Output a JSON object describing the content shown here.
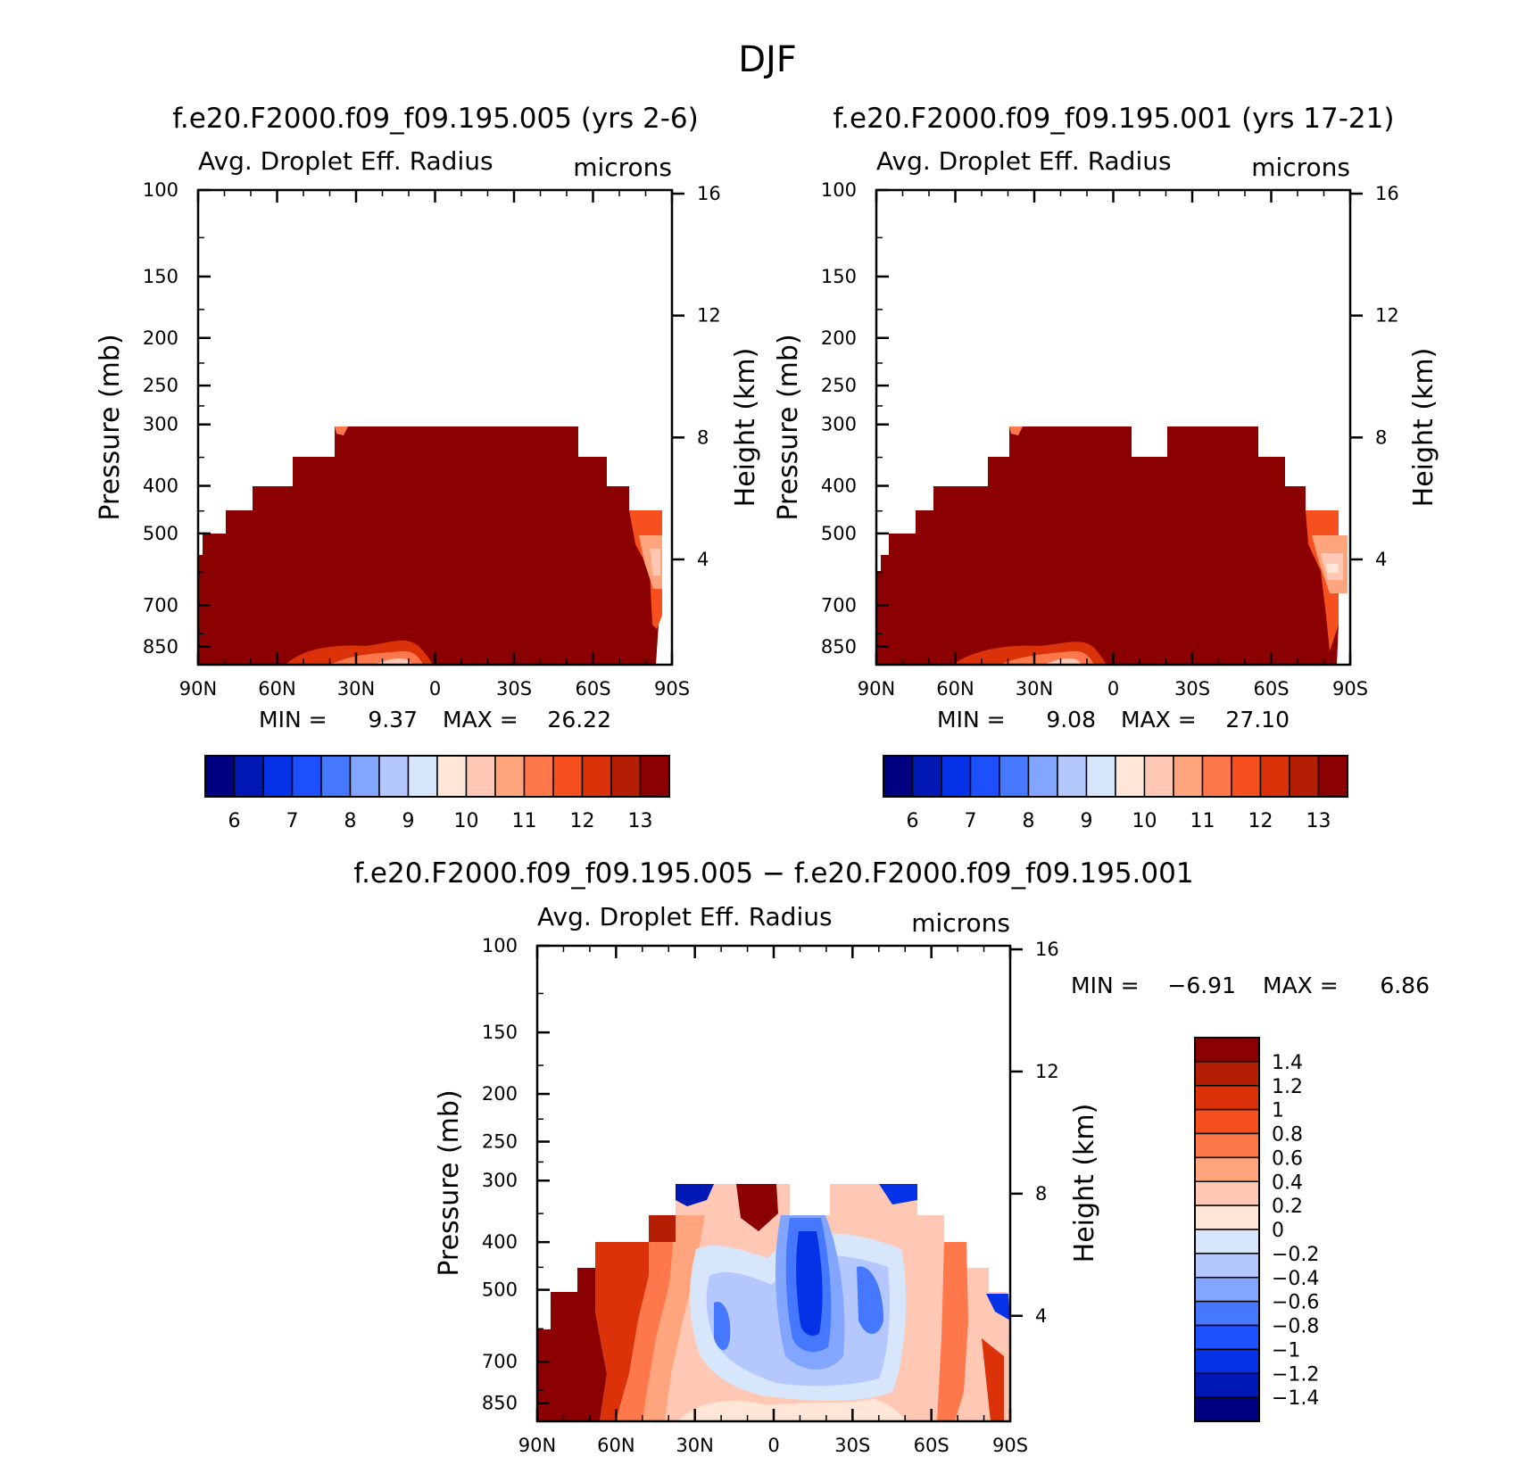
{
  "page_title": "DJF",
  "colors": {
    "dark_red": "#8b0000",
    "seq_scale": [
      "#000080",
      "#0019b4",
      "#0532e6",
      "#1e50ff",
      "#4678ff",
      "#82a5ff",
      "#b4c8ff",
      "#d7e6fa",
      "#ffe6d7",
      "#ffc8b4",
      "#ffa57d",
      "#ff784b",
      "#f5501e",
      "#dc320a",
      "#b41e05",
      "#8b0000"
    ],
    "diff_scale": [
      "#000080",
      "#0019b4",
      "#0532e6",
      "#1e50ff",
      "#4678ff",
      "#82a5ff",
      "#b4c8ff",
      "#d7e6fa",
      "#ffe6d7",
      "#ffc8b4",
      "#ffa57d",
      "#ff784b",
      "#f5501e",
      "#dc320a",
      "#b41e05",
      "#8b0000"
    ]
  },
  "chart_data": [
    {
      "id": "case1",
      "type": "heatmap",
      "title": "f.e20.F2000.f09_f09.195.005 (yrs 2-6)",
      "variable": "Avg. Droplet Eff. Radius",
      "units": "microns",
      "ylabel": "Pressure (mb)",
      "ylabel_right": "Height (km)",
      "x_ticks": [
        "90N",
        "60N",
        "30N",
        "0",
        "30S",
        "60S",
        "90S"
      ],
      "y_ticks": [
        "100",
        "150",
        "200",
        "250",
        "300",
        "400",
        "500",
        "700",
        "850"
      ],
      "y_ticks_right": [
        "16",
        "12",
        "8",
        "4"
      ],
      "ylim": [
        100,
        925
      ],
      "stats": {
        "min_label": "MIN =",
        "min": "9.37",
        "max_label": "MAX =",
        "max": "26.22"
      },
      "colorbar_labels": [
        "6",
        "7",
        "8",
        "9",
        "10",
        "11",
        "12",
        "13"
      ]
    },
    {
      "id": "case2",
      "type": "heatmap",
      "title": "f.e20.F2000.f09_f09.195.001 (yrs 17-21)",
      "variable": "Avg. Droplet Eff. Radius",
      "units": "microns",
      "ylabel": "Pressure (mb)",
      "ylabel_right": "Height (km)",
      "x_ticks": [
        "90N",
        "60N",
        "30N",
        "0",
        "30S",
        "60S",
        "90S"
      ],
      "y_ticks": [
        "100",
        "150",
        "200",
        "250",
        "300",
        "400",
        "500",
        "700",
        "850"
      ],
      "y_ticks_right": [
        "16",
        "12",
        "8",
        "4"
      ],
      "ylim": [
        100,
        925
      ],
      "stats": {
        "min_label": "MIN =",
        "min": "9.08",
        "max_label": "MAX =",
        "max": "27.10"
      },
      "colorbar_labels": [
        "6",
        "7",
        "8",
        "9",
        "10",
        "11",
        "12",
        "13"
      ]
    },
    {
      "id": "diff",
      "type": "heatmap",
      "title": "f.e20.F2000.f09_f09.195.005 − f.e20.F2000.f09_f09.195.001",
      "variable": "Avg. Droplet Eff. Radius",
      "units": "microns",
      "ylabel": "Pressure (mb)",
      "ylabel_right": "Height (km)",
      "x_ticks": [
        "90N",
        "60N",
        "30N",
        "0",
        "30S",
        "60S",
        "90S"
      ],
      "y_ticks": [
        "100",
        "150",
        "200",
        "250",
        "300",
        "400",
        "500",
        "700",
        "850"
      ],
      "y_ticks_right": [
        "16",
        "12",
        "8",
        "4"
      ],
      "ylim": [
        100,
        925
      ],
      "stats": {
        "min_label": "MIN =",
        "min": "−6.91",
        "max_label": "MAX =",
        "max": "6.86"
      },
      "colorbar_labels": [
        "1.4",
        "1.2",
        "1",
        "0.8",
        "0.6",
        "0.4",
        "0.2",
        "0",
        "−0.2",
        "−0.4",
        "−0.6",
        "−0.8",
        "−1",
        "−1.2",
        "−1.4"
      ]
    }
  ]
}
